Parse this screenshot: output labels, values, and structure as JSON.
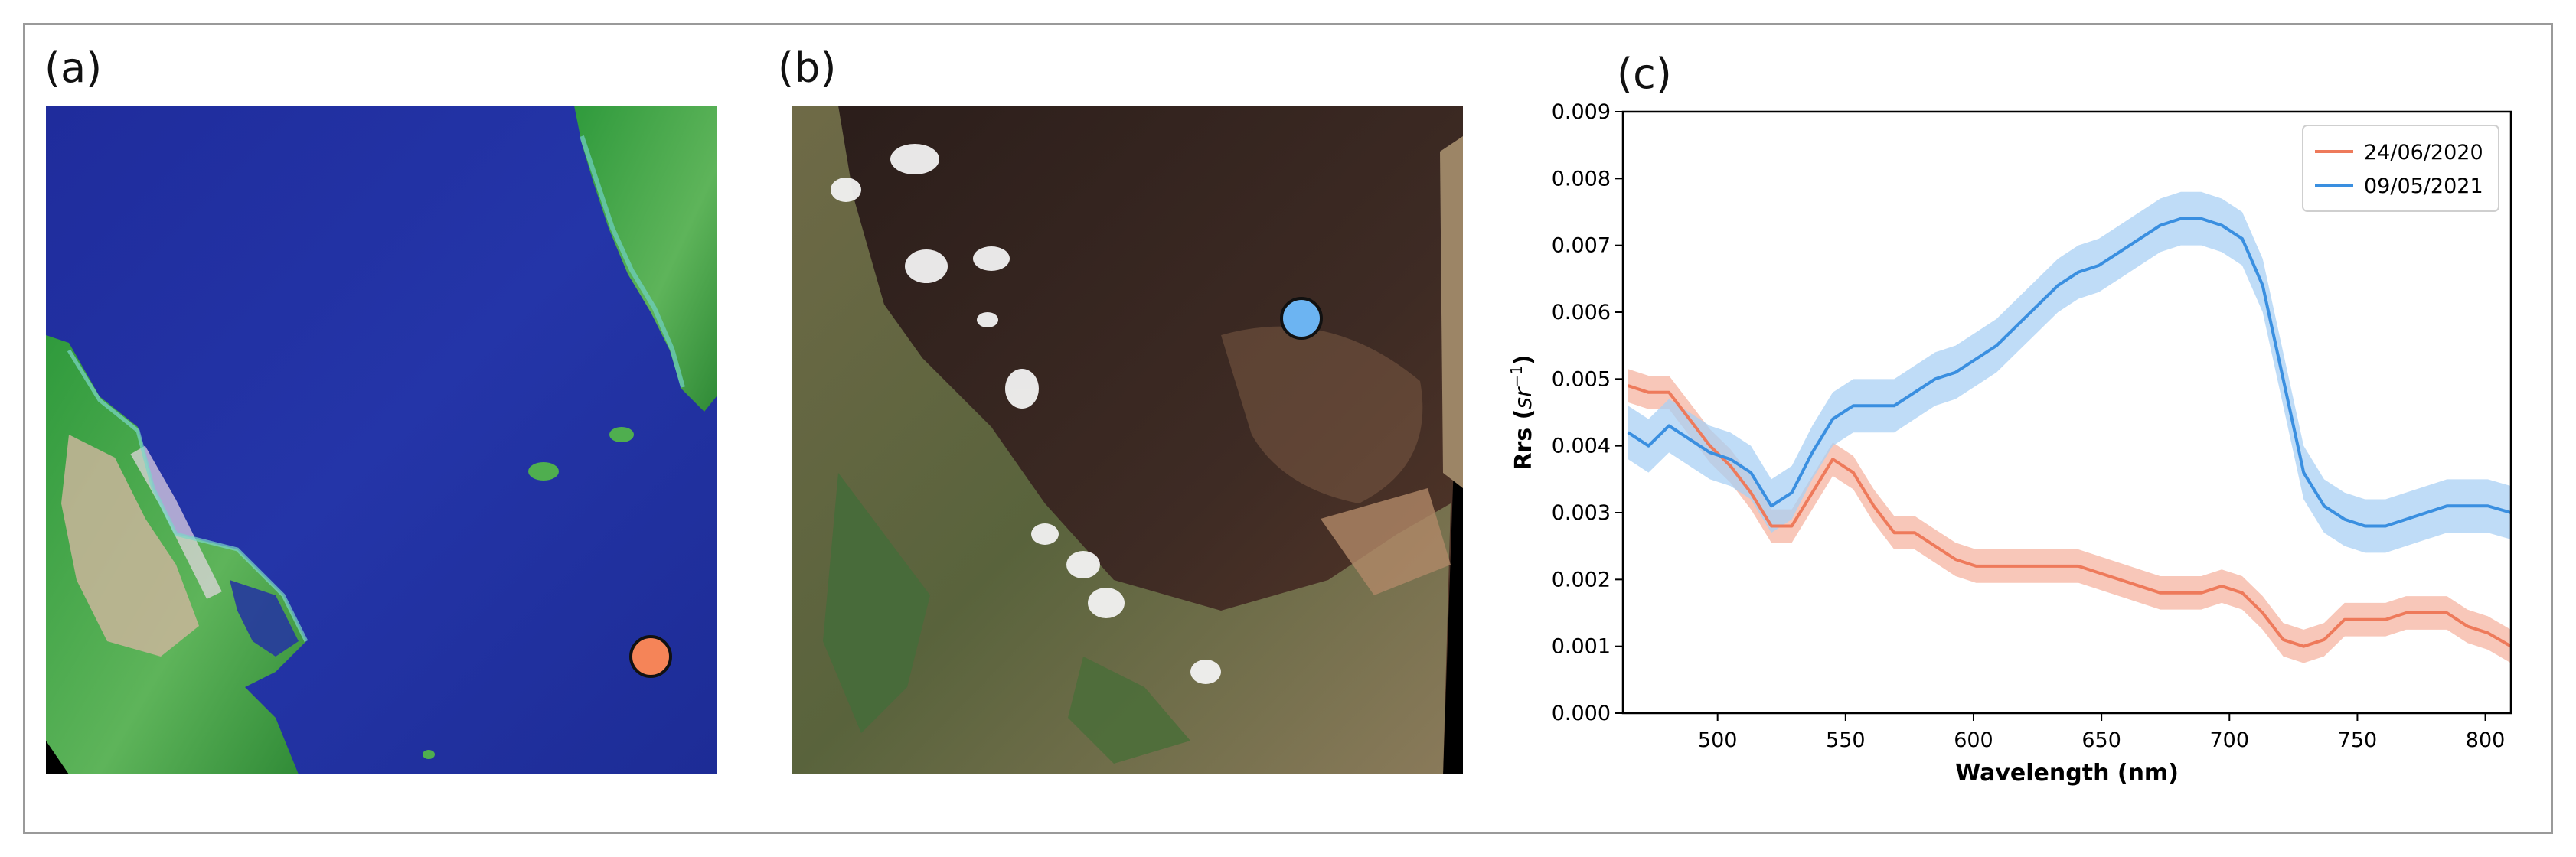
{
  "panels": {
    "a": {
      "label": "(a)",
      "marker_color": "#f58458"
    },
    "b": {
      "label": "(b)",
      "marker_color": "#6cb4f2"
    },
    "c": {
      "label": "(c)"
    }
  },
  "colors": {
    "series_2020": "#ee7a5b",
    "series_2021": "#3a8fe0",
    "band_2020": "#f6b4a2",
    "band_2021": "#a9d0f4"
  },
  "chart_data": {
    "type": "line",
    "xlabel": "Wavelength (nm)",
    "ylabel": "Rrs (sr⁻¹)",
    "ylabel_parts": {
      "main": "Rrs (",
      "unit": "sr",
      "exp": "−1",
      "close": ")"
    },
    "xlim": [
      463,
      810
    ],
    "ylim": [
      0,
      0.009
    ],
    "xticks": [
      500,
      550,
      600,
      650,
      700,
      750,
      800
    ],
    "xtick_labels": [
      "500",
      "550",
      "600",
      "650",
      "700",
      "750",
      "800"
    ],
    "yticks": [
      0,
      0.001,
      0.002,
      0.003,
      0.004,
      0.005,
      0.006,
      0.007,
      0.008,
      0.009
    ],
    "ytick_labels": [
      "0.000",
      "0.001",
      "0.002",
      "0.003",
      "0.004",
      "0.005",
      "0.006",
      "0.007",
      "0.008",
      "0.009"
    ],
    "legend_position": "top-right",
    "grid": false,
    "series": [
      {
        "name": "24/06/2020",
        "x": [
          465,
          473,
          481,
          489,
          497,
          505,
          513,
          521,
          529,
          537,
          545,
          553,
          561,
          569,
          577,
          585,
          593,
          601,
          609,
          617,
          625,
          633,
          641,
          649,
          657,
          665,
          673,
          681,
          689,
          697,
          705,
          713,
          721,
          729,
          737,
          745,
          753,
          761,
          769,
          777,
          785,
          793,
          801,
          810
        ],
        "y": [
          0.0049,
          0.0048,
          0.0048,
          0.0044,
          0.004,
          0.0037,
          0.0033,
          0.0028,
          0.0028,
          0.0033,
          0.0038,
          0.0036,
          0.0031,
          0.0027,
          0.0027,
          0.0025,
          0.0023,
          0.0022,
          0.0022,
          0.0022,
          0.0022,
          0.0022,
          0.0022,
          0.0021,
          0.002,
          0.0019,
          0.0018,
          0.0018,
          0.0018,
          0.0019,
          0.0018,
          0.0015,
          0.0011,
          0.001,
          0.0011,
          0.0014,
          0.0014,
          0.0014,
          0.0015,
          0.0015,
          0.0015,
          0.0013,
          0.0012,
          0.001
        ],
        "band": 0.00025
      },
      {
        "name": "09/05/2021",
        "x": [
          465,
          473,
          481,
          489,
          497,
          505,
          513,
          521,
          529,
          537,
          545,
          553,
          561,
          569,
          577,
          585,
          593,
          601,
          609,
          617,
          625,
          633,
          641,
          649,
          657,
          665,
          673,
          681,
          689,
          697,
          705,
          713,
          721,
          729,
          737,
          745,
          753,
          761,
          769,
          777,
          785,
          793,
          801,
          810
        ],
        "y": [
          0.0042,
          0.004,
          0.0043,
          0.0041,
          0.0039,
          0.0038,
          0.0036,
          0.0031,
          0.0033,
          0.0039,
          0.0044,
          0.0046,
          0.0046,
          0.0046,
          0.0048,
          0.005,
          0.0051,
          0.0053,
          0.0055,
          0.0058,
          0.0061,
          0.0064,
          0.0066,
          0.0067,
          0.0069,
          0.0071,
          0.0073,
          0.0074,
          0.0074,
          0.0073,
          0.0071,
          0.0064,
          0.005,
          0.0036,
          0.0031,
          0.0029,
          0.0028,
          0.0028,
          0.0029,
          0.003,
          0.0031,
          0.0031,
          0.0031,
          0.003
        ],
        "band": 0.0004
      }
    ]
  }
}
